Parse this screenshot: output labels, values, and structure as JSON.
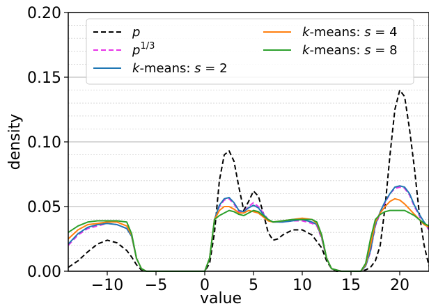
{
  "chart_data": {
    "type": "line",
    "xlabel": "value",
    "ylabel": "density",
    "xlim": [
      -14,
      23
    ],
    "ylim": [
      0,
      0.2
    ],
    "x_ticks": [
      -10,
      -5,
      0,
      5,
      10,
      15,
      20
    ],
    "x_tick_labels": [
      "−10",
      "−5",
      "0",
      "5",
      "10",
      "15",
      "20"
    ],
    "y_ticks": [
      0.0,
      0.05,
      0.1,
      0.15,
      0.2
    ],
    "y_tick_labels": [
      "0.00",
      "0.05",
      "0.10",
      "0.15",
      "0.20"
    ],
    "y_minor_step": 0.01,
    "grid": "horizontal",
    "legend_position": "top",
    "series": [
      {
        "name": "p",
        "color": "#000000",
        "dash": "dashed",
        "x": [
          -14,
          -13,
          -12,
          -11,
          -10,
          -9,
          -8,
          -7.5,
          -7,
          -6.5,
          -6,
          -5,
          0,
          0.5,
          1,
          1.5,
          2,
          2.5,
          3,
          3.5,
          4,
          4.5,
          5,
          5.5,
          6,
          6.5,
          7,
          7.5,
          8,
          9,
          10,
          11,
          12,
          12.5,
          13,
          13.5,
          14,
          15,
          16,
          16.5,
          17,
          17.5,
          18,
          18.5,
          19,
          19.5,
          20,
          20.5,
          21,
          21.5,
          22,
          22.5,
          23
        ],
        "y": [
          0.003,
          0.008,
          0.015,
          0.021,
          0.024,
          0.022,
          0.016,
          0.011,
          0.005,
          0.001,
          0,
          0,
          0,
          0.006,
          0.03,
          0.07,
          0.09,
          0.093,
          0.085,
          0.065,
          0.047,
          0.054,
          0.062,
          0.058,
          0.045,
          0.03,
          0.024,
          0.025,
          0.028,
          0.032,
          0.032,
          0.028,
          0.018,
          0.008,
          0.002,
          0,
          0,
          0,
          0,
          0.001,
          0.003,
          0.008,
          0.02,
          0.05,
          0.09,
          0.125,
          0.14,
          0.135,
          0.11,
          0.08,
          0.045,
          0.02,
          0.004
        ]
      },
      {
        "name": "p^{1/3}",
        "color": "#e833e8",
        "dash": "dashed",
        "x": [
          -14,
          -13,
          -12,
          -11,
          -10,
          -9,
          -8,
          -7.5,
          -7,
          -6.5,
          -6,
          -5,
          0,
          0.5,
          1,
          1.5,
          2,
          2.5,
          3,
          3.5,
          4,
          4.5,
          5,
          5.5,
          6,
          6.5,
          7,
          8,
          9,
          10,
          11,
          11.5,
          12,
          12.5,
          13,
          14,
          15,
          16,
          16.5,
          17,
          17.5,
          18,
          18.5,
          19,
          19.5,
          20,
          20.5,
          21,
          21.5,
          22,
          22.5,
          23
        ],
        "y": [
          0.02,
          0.028,
          0.033,
          0.035,
          0.037,
          0.036,
          0.033,
          0.027,
          0.01,
          0.002,
          0,
          0,
          0,
          0.01,
          0.04,
          0.05,
          0.055,
          0.056,
          0.052,
          0.046,
          0.046,
          0.05,
          0.053,
          0.05,
          0.045,
          0.04,
          0.038,
          0.038,
          0.039,
          0.039,
          0.037,
          0.035,
          0.025,
          0.01,
          0.002,
          0,
          0,
          0,
          0.004,
          0.015,
          0.035,
          0.045,
          0.053,
          0.06,
          0.064,
          0.065,
          0.064,
          0.059,
          0.05,
          0.043,
          0.037,
          0.032
        ]
      },
      {
        "name": "k-means: s = 2",
        "color": "#1f77b4",
        "dash": "solid",
        "x": [
          -14,
          -13,
          -12,
          -11,
          -10,
          -9,
          -8,
          -7.5,
          -7,
          -6.5,
          -6,
          -5,
          0,
          0.5,
          1,
          1.5,
          2,
          2.5,
          3,
          3.5,
          4,
          4.5,
          5,
          5.5,
          6,
          6.5,
          7,
          8,
          9,
          10,
          11,
          11.5,
          12,
          12.5,
          13,
          14,
          15,
          16,
          16.5,
          17,
          17.5,
          18,
          18.5,
          19,
          19.5,
          20,
          20.5,
          21,
          21.5,
          22,
          22.5,
          23
        ],
        "y": [
          0.021,
          0.029,
          0.034,
          0.036,
          0.037,
          0.036,
          0.033,
          0.027,
          0.01,
          0.002,
          0,
          0,
          0,
          0.01,
          0.04,
          0.051,
          0.056,
          0.057,
          0.053,
          0.047,
          0.046,
          0.049,
          0.051,
          0.049,
          0.044,
          0.04,
          0.038,
          0.038,
          0.039,
          0.04,
          0.038,
          0.036,
          0.026,
          0.01,
          0.002,
          0,
          0,
          0,
          0.004,
          0.016,
          0.036,
          0.046,
          0.054,
          0.06,
          0.065,
          0.066,
          0.065,
          0.06,
          0.051,
          0.044,
          0.038,
          0.033
        ]
      },
      {
        "name": "k-means: s = 4",
        "color": "#ff7f0e",
        "dash": "solid",
        "x": [
          -14,
          -13,
          -12,
          -11,
          -10,
          -9,
          -8,
          -7.5,
          -7,
          -6.5,
          -6,
          -5,
          0,
          0.5,
          1,
          1.5,
          2,
          2.5,
          3,
          3.5,
          4,
          4.5,
          5,
          5.5,
          6,
          6.5,
          7,
          8,
          9,
          10,
          11,
          11.5,
          12,
          12.5,
          13,
          14,
          15,
          16,
          16.5,
          17,
          17.5,
          18,
          18.5,
          19,
          19.5,
          20,
          20.5,
          21,
          21.5,
          22,
          22.5,
          23
        ],
        "y": [
          0.025,
          0.032,
          0.036,
          0.037,
          0.038,
          0.038,
          0.035,
          0.028,
          0.01,
          0.002,
          0,
          0,
          0,
          0.01,
          0.04,
          0.047,
          0.05,
          0.05,
          0.048,
          0.045,
          0.045,
          0.047,
          0.046,
          0.045,
          0.042,
          0.039,
          0.038,
          0.039,
          0.04,
          0.041,
          0.04,
          0.037,
          0.027,
          0.01,
          0.002,
          0,
          0,
          0,
          0.005,
          0.02,
          0.038,
          0.045,
          0.05,
          0.054,
          0.056,
          0.055,
          0.052,
          0.048,
          0.044,
          0.04,
          0.036,
          0.034
        ]
      },
      {
        "name": "k-means: s = 8",
        "color": "#2ca02c",
        "dash": "solid",
        "x": [
          -14,
          -13,
          -12,
          -11,
          -10,
          -9,
          -8,
          -7.5,
          -7,
          -6.5,
          -6,
          -5,
          0,
          0.5,
          1,
          1.5,
          2,
          2.5,
          3,
          3.5,
          4,
          4.5,
          5,
          5.5,
          6,
          6.5,
          7,
          8,
          9,
          10,
          11,
          11.5,
          12,
          12.5,
          13,
          14,
          15,
          16,
          16.5,
          17,
          17.5,
          18,
          18.5,
          19,
          19.5,
          20,
          20.5,
          21,
          21.5,
          22,
          22.5,
          23
        ],
        "y": [
          0.03,
          0.035,
          0.038,
          0.039,
          0.039,
          0.039,
          0.038,
          0.029,
          0.01,
          0.002,
          0,
          0,
          0,
          0.01,
          0.04,
          0.043,
          0.045,
          0.047,
          0.046,
          0.044,
          0.043,
          0.045,
          0.047,
          0.046,
          0.043,
          0.04,
          0.038,
          0.039,
          0.04,
          0.04,
          0.04,
          0.038,
          0.028,
          0.01,
          0.002,
          0,
          0,
          0,
          0.006,
          0.025,
          0.04,
          0.044,
          0.046,
          0.047,
          0.047,
          0.047,
          0.047,
          0.045,
          0.043,
          0.04,
          0.037,
          0.035
        ]
      }
    ]
  }
}
